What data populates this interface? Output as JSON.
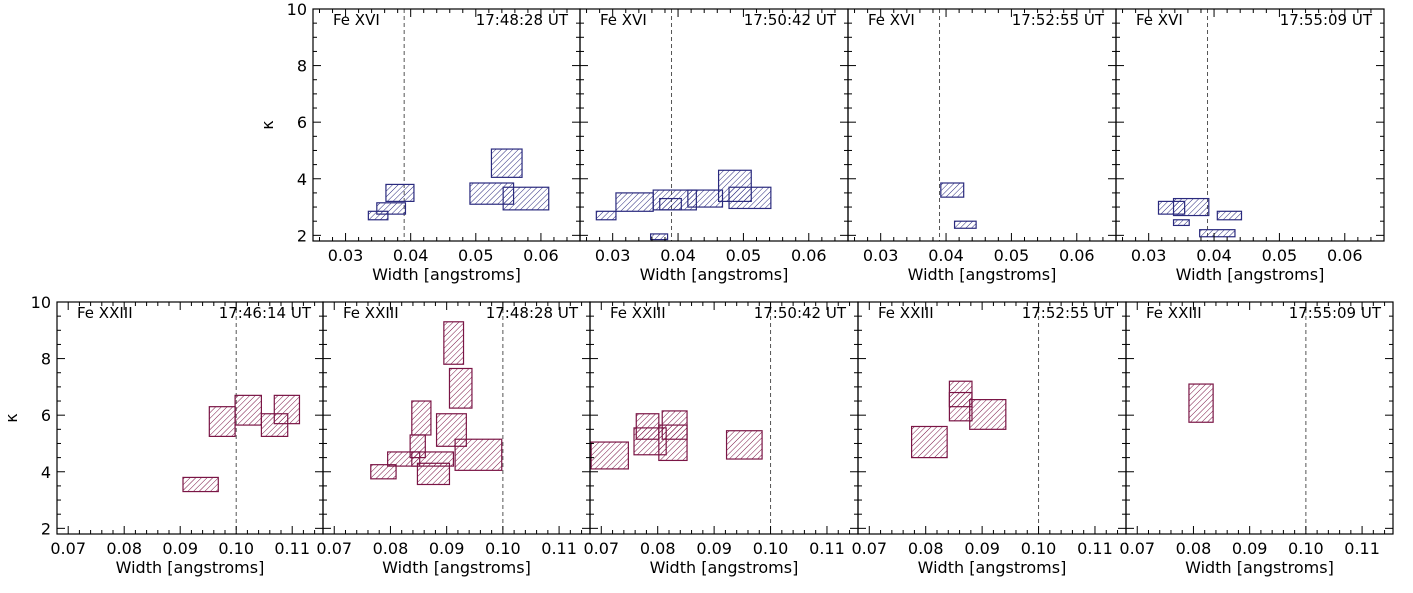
{
  "colors": {
    "top": "#2a2a7e",
    "bottom": "#7a1545",
    "axis": "#000000",
    "dashed": "#555555"
  },
  "chart_data": [
    {
      "type": "scatter",
      "row": "top",
      "ion": "Fe XVI",
      "time": "17:48:28 UT",
      "xlabel": "Width [angstroms]",
      "ylabel": "κ",
      "xlim": [
        0.025,
        0.066
      ],
      "ylim": [
        1.8,
        10.0
      ],
      "xticks": [
        "0.03",
        "0.04",
        "0.05",
        "0.06"
      ],
      "yticks": [
        "2",
        "4",
        "6",
        "8",
        "10"
      ],
      "dashed_x": 0.039,
      "boxes": [
        [
          0.0335,
          0.0365,
          2.55,
          2.85
        ],
        [
          0.0348,
          0.0392,
          2.75,
          3.15
        ],
        [
          0.0362,
          0.0405,
          3.2,
          3.8
        ],
        [
          0.0491,
          0.0558,
          3.1,
          3.85
        ],
        [
          0.0524,
          0.0571,
          4.05,
          5.05
        ],
        [
          0.0542,
          0.0612,
          2.9,
          3.7
        ]
      ]
    },
    {
      "type": "scatter",
      "row": "top",
      "ion": "Fe XVI",
      "time": "17:50:42 UT",
      "xlabel": "Width [angstroms]",
      "ylabel": "",
      "xlim": [
        0.025,
        0.066
      ],
      "ylim": [
        1.8,
        10.0
      ],
      "xticks": [
        "0.03",
        "0.04",
        "0.05",
        "0.06"
      ],
      "yticks": [
        "2",
        "4",
        "6",
        "8",
        "10"
      ],
      "dashed_x": 0.039,
      "boxes": [
        [
          0.0275,
          0.0305,
          2.55,
          2.85
        ],
        [
          0.0305,
          0.0362,
          2.85,
          3.5
        ],
        [
          0.0358,
          0.0384,
          1.85,
          2.05
        ],
        [
          0.0362,
          0.0428,
          2.9,
          3.6
        ],
        [
          0.0372,
          0.0405,
          2.9,
          3.3
        ],
        [
          0.0415,
          0.0468,
          3.0,
          3.6
        ],
        [
          0.0462,
          0.0512,
          3.2,
          4.3
        ],
        [
          0.0478,
          0.0542,
          2.95,
          3.7
        ]
      ]
    },
    {
      "type": "scatter",
      "row": "top",
      "ion": "Fe XVI",
      "time": "17:52:55 UT",
      "xlabel": "Width [angstroms]",
      "ylabel": "",
      "xlim": [
        0.025,
        0.066
      ],
      "ylim": [
        1.8,
        10.0
      ],
      "xticks": [
        "0.03",
        "0.04",
        "0.05",
        "0.06"
      ],
      "yticks": [
        "2",
        "4",
        "6",
        "8",
        "10"
      ],
      "dashed_x": 0.039,
      "boxes": [
        [
          0.0392,
          0.0427,
          3.35,
          3.85
        ],
        [
          0.0413,
          0.0446,
          2.25,
          2.5
        ]
      ]
    },
    {
      "type": "scatter",
      "row": "top",
      "ion": "Fe XVI",
      "time": "17:55:09 UT",
      "xlabel": "Width [angstroms]",
      "ylabel": "",
      "xlim": [
        0.025,
        0.066
      ],
      "ylim": [
        1.8,
        10.0
      ],
      "xticks": [
        "0.03",
        "0.04",
        "0.05",
        "0.06"
      ],
      "yticks": [
        "2",
        "4",
        "6",
        "8",
        "10"
      ],
      "dashed_x": 0.039,
      "boxes": [
        [
          0.0315,
          0.0355,
          2.75,
          3.2
        ],
        [
          0.0338,
          0.0392,
          2.7,
          3.3
        ],
        [
          0.0338,
          0.0362,
          2.35,
          2.55
        ],
        [
          0.0378,
          0.0432,
          1.95,
          2.2
        ],
        [
          0.0405,
          0.0442,
          2.55,
          2.85
        ]
      ]
    },
    {
      "type": "scatter",
      "row": "bottom",
      "ion": "Fe XXIII",
      "time": "17:46:14 UT",
      "xlabel": "Width [angstroms]",
      "ylabel": "κ",
      "xlim": [
        0.068,
        0.1155
      ],
      "ylim": [
        1.8,
        10.0
      ],
      "xticks": [
        "0.07",
        "0.08",
        "0.09",
        "0.10",
        "0.11"
      ],
      "yticks": [
        "2",
        "4",
        "6",
        "8",
        "10"
      ],
      "dashed_x": 0.1,
      "boxes": [
        [
          0.0905,
          0.0968,
          3.3,
          3.8
        ],
        [
          0.0952,
          0.0998,
          5.25,
          6.3
        ],
        [
          0.0998,
          0.1045,
          5.65,
          6.7
        ],
        [
          0.1045,
          0.1092,
          5.25,
          6.05
        ],
        [
          0.1068,
          0.1113,
          5.7,
          6.7
        ]
      ]
    },
    {
      "type": "scatter",
      "row": "bottom",
      "ion": "Fe XXIII",
      "time": "17:48:28 UT",
      "xlabel": "Width [angstroms]",
      "ylabel": "",
      "xlim": [
        0.068,
        0.1155
      ],
      "ylim": [
        1.8,
        10.0
      ],
      "xticks": [
        "0.07",
        "0.08",
        "0.09",
        "0.10",
        "0.11"
      ],
      "yticks": [
        "2",
        "4",
        "6",
        "8",
        "10"
      ],
      "dashed_x": 0.1,
      "boxes": [
        [
          0.0765,
          0.081,
          3.75,
          4.25
        ],
        [
          0.0795,
          0.0852,
          4.2,
          4.7
        ],
        [
          0.0835,
          0.0862,
          4.5,
          5.3
        ],
        [
          0.0838,
          0.0872,
          5.3,
          6.5
        ],
        [
          0.0838,
          0.0912,
          4.2,
          4.7
        ],
        [
          0.0848,
          0.0905,
          3.55,
          4.3
        ],
        [
          0.0882,
          0.0935,
          4.9,
          6.05
        ],
        [
          0.0905,
          0.0945,
          6.25,
          7.65
        ],
        [
          0.0895,
          0.093,
          7.8,
          9.3
        ],
        [
          0.0915,
          0.0998,
          4.05,
          5.15
        ]
      ]
    },
    {
      "type": "scatter",
      "row": "bottom",
      "ion": "Fe XXIII",
      "time": "17:50:42 UT",
      "xlabel": "Width [angstroms]",
      "ylabel": "",
      "xlim": [
        0.068,
        0.1155
      ],
      "ylim": [
        1.8,
        10.0
      ],
      "xticks": [
        "0.07",
        "0.08",
        "0.09",
        "0.10",
        "0.11"
      ],
      "yticks": [
        "2",
        "4",
        "6",
        "8",
        "10"
      ],
      "dashed_x": 0.1,
      "boxes": [
        [
          0.0682,
          0.0748,
          4.1,
          5.05
        ],
        [
          0.0758,
          0.0815,
          4.6,
          5.55
        ],
        [
          0.0762,
          0.0802,
          5.15,
          6.05
        ],
        [
          0.0802,
          0.0852,
          4.4,
          5.65
        ],
        [
          0.0808,
          0.0852,
          5.15,
          6.15
        ],
        [
          0.0922,
          0.0985,
          4.45,
          5.45
        ]
      ]
    },
    {
      "type": "scatter",
      "row": "bottom",
      "ion": "Fe XXIII",
      "time": "17:52:55 UT",
      "xlabel": "Width [angstroms]",
      "ylabel": "",
      "xlim": [
        0.068,
        0.1155
      ],
      "ylim": [
        1.8,
        10.0
      ],
      "xticks": [
        "0.07",
        "0.08",
        "0.09",
        "0.10",
        "0.11"
      ],
      "yticks": [
        "2",
        "4",
        "6",
        "8",
        "10"
      ],
      "dashed_x": 0.1,
      "boxes": [
        [
          0.0775,
          0.0838,
          4.5,
          5.6
        ],
        [
          0.0842,
          0.0882,
          5.8,
          6.8
        ],
        [
          0.0842,
          0.0882,
          6.3,
          7.2
        ],
        [
          0.0878,
          0.0942,
          5.5,
          6.55
        ]
      ]
    },
    {
      "type": "scatter",
      "row": "bottom",
      "ion": "Fe XXIII",
      "time": "17:55:09 UT",
      "xlabel": "Width [angstroms]",
      "ylabel": "",
      "xlim": [
        0.068,
        0.1155
      ],
      "ylim": [
        1.8,
        10.0
      ],
      "xticks": [
        "0.07",
        "0.08",
        "0.09",
        "0.10",
        "0.11"
      ],
      "yticks": [
        "2",
        "4",
        "6",
        "8",
        "10"
      ],
      "dashed_x": 0.1,
      "boxes": [
        [
          0.0792,
          0.0835,
          5.75,
          7.1
        ]
      ]
    }
  ]
}
